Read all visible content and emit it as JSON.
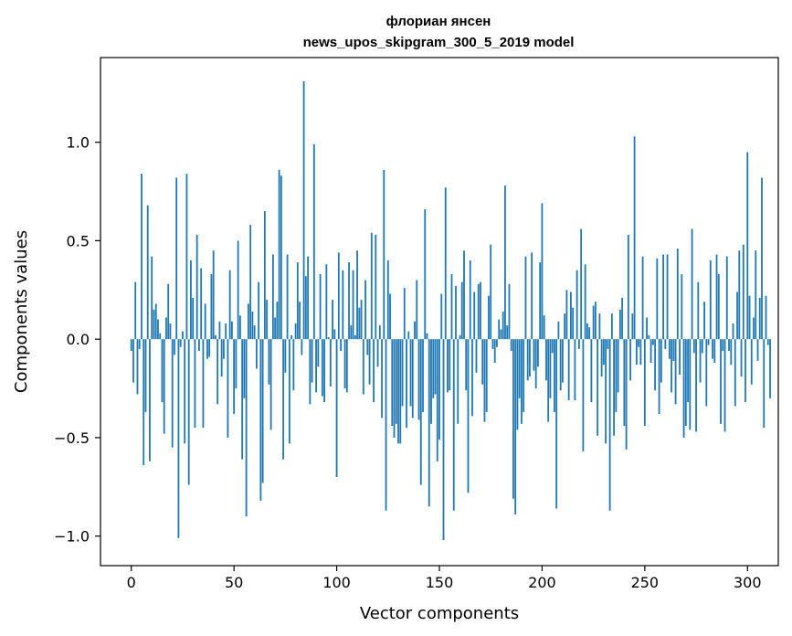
{
  "chart_data": {
    "type": "bar",
    "title": "флориан янсен",
    "subtitle": "news_upos_skipgram_300_5_2019 model",
    "xlabel": "Vector components",
    "ylabel": "Components values",
    "xlim": [
      -15,
      315
    ],
    "ylim": [
      -1.15,
      1.43
    ],
    "xticks": [
      0,
      50,
      100,
      150,
      200,
      250,
      300
    ],
    "xtick_labels": [
      "0",
      "50",
      "100",
      "150",
      "200",
      "250",
      "300"
    ],
    "yticks": [
      -1.0,
      -0.5,
      0.0,
      0.5,
      1.0
    ],
    "ytick_labels": [
      "−1.0",
      "−0.5",
      "0.0",
      "0.5",
      "1.0"
    ],
    "grid": false,
    "bar_color": "#1f77b4",
    "values": [
      -0.06,
      -0.22,
      0.29,
      -0.28,
      -0.05,
      0.84,
      -0.64,
      -0.37,
      0.68,
      -0.62,
      0.42,
      0.15,
      0.18,
      0.1,
      0.03,
      -0.32,
      -0.48,
      0.11,
      0.28,
      0.08,
      -0.55,
      -0.08,
      0.82,
      -1.01,
      -0.04,
      0.04,
      -0.53,
      0.84,
      -0.74,
      0.4,
      0.21,
      -0.45,
      0.53,
      -0.06,
      0.36,
      -0.45,
      0.18,
      -0.1,
      -0.09,
      0.33,
      0.45,
      0.02,
      -0.33,
      0.09,
      -0.19,
      -0.1,
      0.08,
      -0.5,
      0.35,
      0.09,
      -0.38,
      -0.25,
      0.5,
      0.12,
      -0.61,
      -0.3,
      -0.9,
      0.18,
      0.58,
      0.14,
      0.07,
      -0.15,
      0.29,
      -0.82,
      -0.73,
      0.65,
      0.2,
      -0.23,
      -0.46,
      0.43,
      0.11,
      0.19,
      0.86,
      0.83,
      -0.61,
      -0.17,
      0.43,
      -0.53,
      0.02,
      -0.26,
      0.08,
      0.39,
      0.19,
      -0.08,
      1.31,
      0.32,
      0.42,
      -0.33,
      -0.22,
      0.99,
      -0.27,
      -0.14,
      0.33,
      -0.29,
      -0.32,
      0.38,
      0.01,
      -0.24,
      0.2,
      0.05,
      -0.7,
      0.44,
      -0.06,
      0.35,
      -0.25,
      -0.27,
      0.39,
      0.07,
      0.35,
      0.02,
      0.45,
      0.16,
      0.2,
      -0.28,
      0.3,
      -0.08,
      -0.23,
      0.54,
      -0.32,
      0.53,
      -0.14,
      0.07,
      -0.4,
      0.86,
      -0.87,
      0.4,
      0.23,
      -0.44,
      -0.5,
      -0.43,
      -0.53,
      -0.53,
      -0.34,
      0.26,
      -0.45,
      0.04,
      -0.34,
      -0.4,
      0.09,
      0.3,
      -0.41,
      -0.74,
      -0.37,
      0.66,
      0.03,
      -0.85,
      -0.43,
      -0.3,
      -0.28,
      -0.62,
      -0.51,
      0.23,
      -1.02,
      0.77,
      -0.27,
      -0.26,
      0.33,
      -0.87,
      0.27,
      -0.43,
      0.02,
      0.29,
      0.45,
      -0.26,
      -0.78,
      0.4,
      -0.39,
      0.24,
      -0.17,
      0.28,
      0.29,
      -0.23,
      -0.42,
      -0.37,
      0.22,
      0.48,
      -0.05,
      -0.12,
      -0.04,
      0.1,
      0.05,
      0.14,
      0.78,
      0.07,
      0.28,
      -0.06,
      -0.81,
      -0.89,
      -0.46,
      -0.3,
      -0.43,
      -0.37,
      0.42,
      -0.21,
      -0.19,
      0.44,
      -0.16,
      -0.25,
      -0.14,
      0.39,
      0.69,
      0.12,
      -0.21,
      -0.42,
      -0.3,
      -0.07,
      -0.37,
      -0.86,
      0.09,
      -0.26,
      -0.22,
      0.13,
      0.25,
      -0.31,
      0.24,
      0.16,
      -0.31,
      0.35,
      -0.05,
      0.56,
      -0.57,
      0.38,
      0.08,
      0.06,
      -0.32,
      0.17,
      0.19,
      -0.49,
      0.13,
      -0.19,
      -0.13,
      -0.53,
      -0.05,
      -0.87,
      0.13,
      -0.49,
      -0.37,
      -0.27,
      0.15,
      0.21,
      -0.44,
      -0.56,
      0.53,
      -0.21,
      0.13,
      1.03,
      -0.13,
      -0.04,
      -0.13,
      0.42,
      -0.44,
      0.11,
      0.02,
      -0.12,
      -0.03,
      -0.26,
      0.41,
      -0.38,
      -0.22,
      0.43,
      -0.05,
      0.43,
      -0.1,
      -0.27,
      -0.11,
      -0.33,
      0.46,
      -0.18,
      0.33,
      -0.5,
      -0.44,
      -0.32,
      -0.46,
      0.56,
      -0.07,
      -0.47,
      0.29,
      -0.22,
      -0.07,
      0.19,
      -0.34,
      -0.03,
      0.4,
      -0.1,
      -0.12,
      0.43,
      0.33,
      -0.43,
      -0.06,
      -0.47,
      0.42,
      -0.06,
      -0.13,
      0.08,
      -0.34,
      0.24,
      0.45,
      -0.19,
      0.48,
      -0.32,
      0.95,
      0.22,
      -0.23,
      0.11,
      0.45,
      -0.11,
      0.21,
      0.82,
      -0.45,
      0.22,
      -0.03,
      -0.3
    ]
  }
}
